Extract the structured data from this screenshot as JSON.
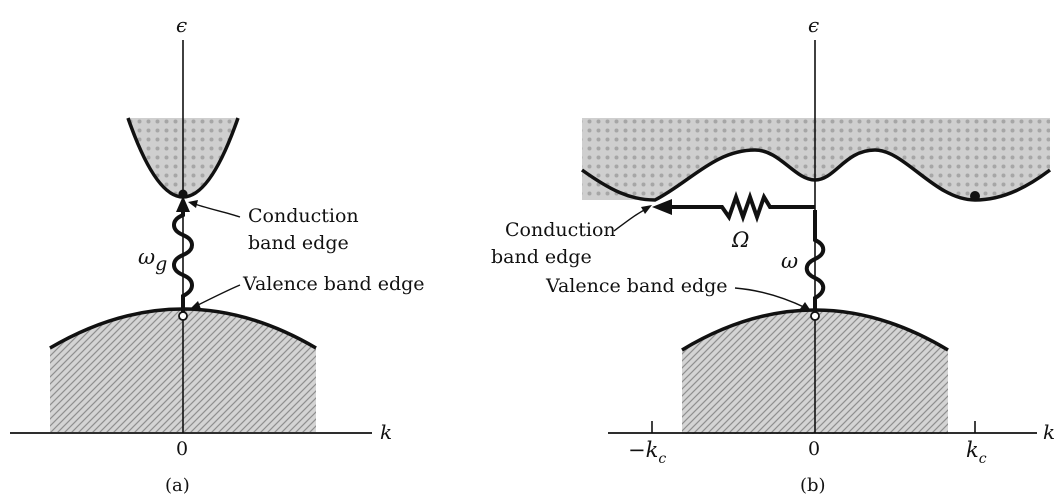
{
  "panel_a": {
    "caption": "(a)",
    "axis_y_label": "ϵ",
    "axis_x_label": "k",
    "origin_tick": "0",
    "conduction_label_line1": "Conduction",
    "conduction_label_line2": "band edge",
    "valence_label": "Valence band edge",
    "transition_symbol": "ω",
    "transition_subscript": "g"
  },
  "panel_b": {
    "caption": "(b)",
    "axis_y_label": "ϵ",
    "axis_x_label": "k",
    "origin_tick": "0",
    "neg_tick": "−k",
    "neg_tick_sub": "c",
    "pos_tick": "k",
    "pos_tick_sub": "c",
    "conduction_label_line1": "Conduction",
    "conduction_label_line2": "band edge",
    "valence_label": "Valence band edge",
    "photon_symbol": "ω",
    "phonon_symbol": "Ω"
  },
  "colors": {
    "ink": "#111111",
    "band_fill": "#c9c9c9",
    "hatch": "#9a9a9a"
  }
}
